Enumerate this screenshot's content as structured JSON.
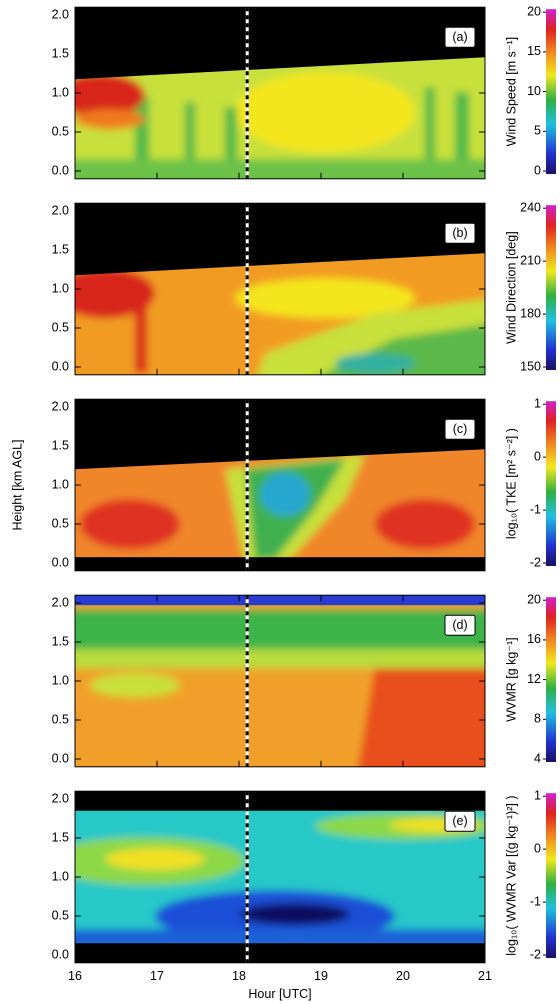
{
  "chart_data": [
    {
      "type": "heatmap",
      "label": "(a)",
      "colorbar_label": "Wind Speed [m s⁻¹]",
      "colorbar_lim": [
        0,
        20
      ],
      "colorbar_ticks": [
        0,
        5,
        10,
        15,
        20
      ],
      "xlim": [
        16,
        21
      ],
      "xticks": [
        16,
        17,
        18,
        19,
        20,
        21
      ],
      "ylim": [
        -0.1,
        2.1
      ],
      "yticks": [
        {
          "value": 0,
          "label": "0.0"
        },
        {
          "value": 0.5,
          "label": "0.5"
        },
        {
          "value": 1,
          "label": "1.0"
        },
        {
          "value": 1.5,
          "label": "1.5"
        },
        {
          "value": 2,
          "label": "2.0"
        }
      ],
      "vline": 18.1
    },
    {
      "type": "heatmap",
      "label": "(b)",
      "colorbar_label": "Wind Direction [deg]",
      "colorbar_lim": [
        150,
        240
      ],
      "colorbar_ticks": [
        150,
        180,
        210,
        240
      ],
      "xlim": [
        16,
        21
      ],
      "xticks": [
        16,
        17,
        18,
        19,
        20,
        21
      ],
      "ylim": [
        -0.1,
        2.1
      ],
      "yticks": [
        {
          "value": 0,
          "label": "0.0"
        },
        {
          "value": 0.5,
          "label": "0.5"
        },
        {
          "value": 1,
          "label": "1.0"
        },
        {
          "value": 1.5,
          "label": "1.5"
        },
        {
          "value": 2,
          "label": "2.0"
        }
      ],
      "vline": 18.1
    },
    {
      "type": "heatmap",
      "label": "(c)",
      "colorbar_label": "log₁₀( TKE [m² s⁻²] )",
      "colorbar_lim": [
        -2,
        1
      ],
      "colorbar_ticks": [
        -2,
        -1,
        0,
        1
      ],
      "ylabel": "Height [km AGL]",
      "xlim": [
        16,
        21
      ],
      "xticks": [
        16,
        17,
        18,
        19,
        20,
        21
      ],
      "ylim": [
        -0.1,
        2.1
      ],
      "yticks": [
        {
          "value": 0,
          "label": "0.0"
        },
        {
          "value": 0.5,
          "label": "0.5"
        },
        {
          "value": 1,
          "label": "1.0"
        },
        {
          "value": 1.5,
          "label": "1.5"
        },
        {
          "value": 2,
          "label": "2.0"
        }
      ],
      "vline": 18.1
    },
    {
      "type": "heatmap",
      "label": "(d)",
      "colorbar_label": "WVMR [g kg⁻¹]",
      "colorbar_lim": [
        4,
        20
      ],
      "colorbar_ticks": [
        4,
        8,
        12,
        16,
        20
      ],
      "xlim": [
        16,
        21
      ],
      "xticks": [
        16,
        17,
        18,
        19,
        20,
        21
      ],
      "ylim": [
        -0.1,
        2.1
      ],
      "yticks": [
        {
          "value": 0,
          "label": "0.0"
        },
        {
          "value": 0.5,
          "label": "0.5"
        },
        {
          "value": 1,
          "label": "1.0"
        },
        {
          "value": 1.5,
          "label": "1.5"
        },
        {
          "value": 2,
          "label": "2.0"
        }
      ],
      "vline": 18.1
    },
    {
      "type": "heatmap",
      "label": "(e)",
      "colorbar_label": "log₁₀( WVMR Var [(g kg⁻¹)²] )",
      "colorbar_lim": [
        -2,
        1
      ],
      "colorbar_ticks": [
        -2,
        -1,
        0,
        1
      ],
      "xlabel": "Hour [UTC]",
      "xlim": [
        16,
        21
      ],
      "xticks": [
        16,
        17,
        18,
        19,
        20,
        21
      ],
      "ylim": [
        -0.1,
        2.1
      ],
      "yticks": [
        {
          "value": 0,
          "label": "0.0"
        },
        {
          "value": 0.5,
          "label": "0.5"
        },
        {
          "value": 1,
          "label": "1.0"
        },
        {
          "value": 1.5,
          "label": "1.5"
        },
        {
          "value": 2,
          "label": "2.0"
        }
      ],
      "vline": 18.1
    }
  ]
}
